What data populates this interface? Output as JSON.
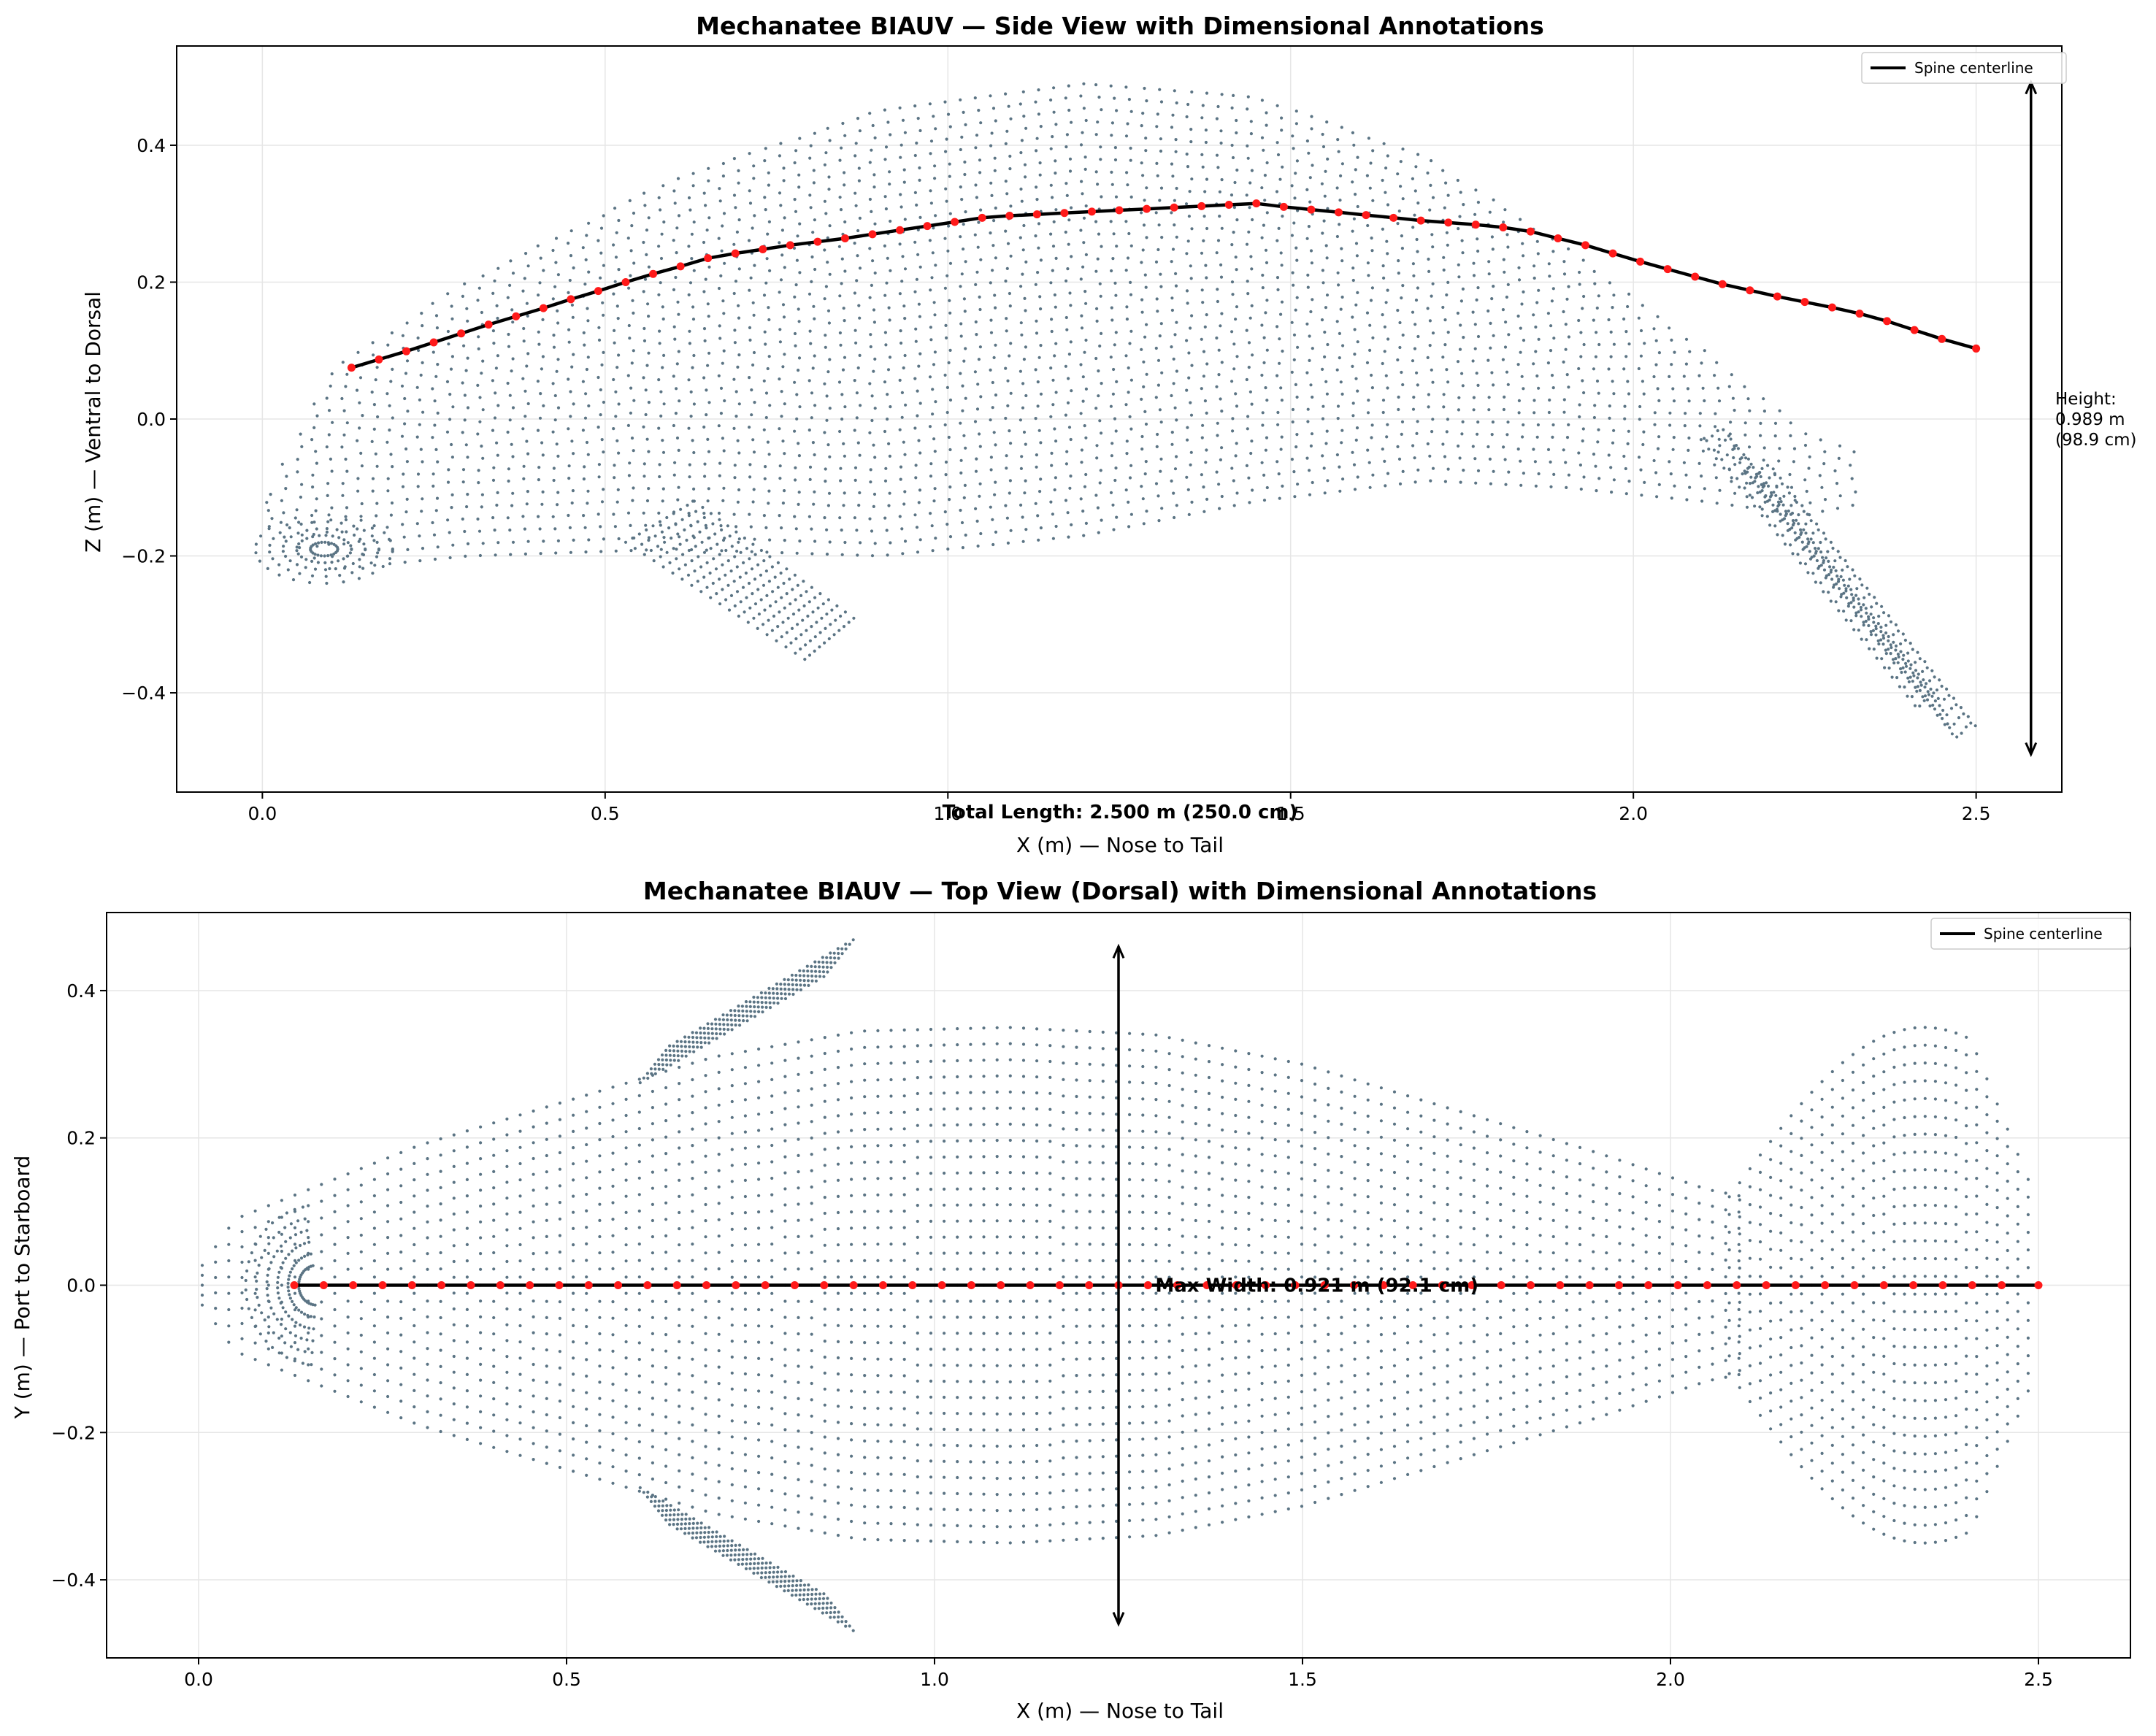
{
  "colors": {
    "cloud": "#5b7484",
    "spine": "#000000",
    "spine_points": "#ff1a1a",
    "grid": "#e6e6e6"
  },
  "chart_data": [
    {
      "type": "scatter",
      "title": "Mechanatee BIAUV — Side View with Dimensional Annotations",
      "xlabel": "X (m) — Nose to Tail",
      "ylabel": "Z (m) — Ventral to Dorsal",
      "xlim": [
        -0.125,
        2.625
      ],
      "ylim": [
        -0.545,
        0.545
      ],
      "xticks": [
        0.0,
        0.5,
        1.0,
        1.5,
        2.0,
        2.5
      ],
      "xtick_labels": [
        "0.0",
        "0.5",
        "1.0",
        "1.5",
        "2.0",
        "2.5"
      ],
      "yticks": [
        -0.4,
        -0.2,
        0.0,
        0.2,
        0.4
      ],
      "ytick_labels": [
        "−0.4",
        "−0.2",
        "0.0",
        "0.2",
        "0.4"
      ],
      "grid": true,
      "legend": {
        "placement": "upper right",
        "entries": [
          "Spine centerline"
        ]
      },
      "series": [
        {
          "name": "Spine centerline",
          "x": [
            0.13,
            0.17,
            0.21,
            0.25,
            0.29,
            0.33,
            0.37,
            0.41,
            0.45,
            0.49,
            0.53,
            0.57,
            0.61,
            0.65,
            0.69,
            0.73,
            0.77,
            0.81,
            0.85,
            0.89,
            0.93,
            0.97,
            1.01,
            1.05,
            1.09,
            1.13,
            1.17,
            1.21,
            1.25,
            1.29,
            1.33,
            1.37,
            1.41,
            1.45,
            1.49,
            1.53,
            1.57,
            1.61,
            1.65,
            1.69,
            1.73,
            1.77,
            1.81,
            1.85,
            1.89,
            1.93,
            1.97,
            2.01,
            2.05,
            2.09,
            2.13,
            2.17,
            2.21,
            2.25,
            2.29,
            2.33,
            2.37,
            2.41,
            2.45,
            2.5
          ],
          "y": [
            0.075,
            0.087,
            0.099,
            0.112,
            0.125,
            0.138,
            0.15,
            0.162,
            0.175,
            0.187,
            0.2,
            0.212,
            0.223,
            0.235,
            0.242,
            0.248,
            0.254,
            0.259,
            0.264,
            0.27,
            0.276,
            0.282,
            0.288,
            0.294,
            0.297,
            0.299,
            0.301,
            0.303,
            0.305,
            0.307,
            0.309,
            0.311,
            0.313,
            0.315,
            0.31,
            0.306,
            0.302,
            0.298,
            0.294,
            0.29,
            0.287,
            0.284,
            0.28,
            0.274,
            0.264,
            0.254,
            0.242,
            0.23,
            0.219,
            0.208,
            0.197,
            0.188,
            0.179,
            0.171,
            0.163,
            0.154,
            0.143,
            0.13,
            0.117,
            0.103
          ]
        }
      ],
      "annotations": [
        {
          "text_lines": [
            "Height:",
            "0.989 m",
            "(98.9 cm)"
          ],
          "arrow": {
            "x": 2.58,
            "y_from": -0.49,
            "y_to": 0.492
          }
        },
        {
          "text": "Total Length: 2.500 m (250.0 cm)",
          "x": 1.25
        }
      ]
    },
    {
      "type": "scatter",
      "title": "Mechanatee BIAUV — Top View (Dorsal) with Dimensional Annotations",
      "xlabel": "X (m) — Nose to Tail",
      "ylabel": "Y (m) — Port to Starboard",
      "xlim": [
        -0.125,
        2.625
      ],
      "ylim": [
        -0.506,
        0.506
      ],
      "xticks": [
        0.0,
        0.5,
        1.0,
        1.5,
        2.0,
        2.5
      ],
      "xtick_labels": [
        "0.0",
        "0.5",
        "1.0",
        "1.5",
        "2.0",
        "2.5"
      ],
      "yticks": [
        -0.4,
        -0.2,
        0.0,
        0.2,
        0.4
      ],
      "ytick_labels": [
        "−0.4",
        "−0.2",
        "0.0",
        "0.2",
        "0.4"
      ],
      "grid": true,
      "legend": {
        "placement": "upper right",
        "entries": [
          "Spine centerline"
        ]
      },
      "series": [
        {
          "name": "Spine centerline",
          "x": [
            0.13,
            0.17,
            0.21,
            0.25,
            0.29,
            0.33,
            0.37,
            0.41,
            0.45,
            0.49,
            0.53,
            0.57,
            0.61,
            0.65,
            0.69,
            0.73,
            0.77,
            0.81,
            0.85,
            0.89,
            0.93,
            0.97,
            1.01,
            1.05,
            1.09,
            1.13,
            1.17,
            1.21,
            1.25,
            1.29,
            1.33,
            1.37,
            1.41,
            1.45,
            1.49,
            1.53,
            1.57,
            1.61,
            1.65,
            1.69,
            1.73,
            1.77,
            1.81,
            1.85,
            1.89,
            1.93,
            1.97,
            2.01,
            2.05,
            2.09,
            2.13,
            2.17,
            2.21,
            2.25,
            2.29,
            2.33,
            2.37,
            2.41,
            2.45,
            2.5
          ],
          "y": [
            0,
            0,
            0,
            0,
            0,
            0,
            0,
            0,
            0,
            0,
            0,
            0,
            0,
            0,
            0,
            0,
            0,
            0,
            0,
            0,
            0,
            0,
            0,
            0,
            0,
            0,
            0,
            0,
            0,
            0,
            0,
            0,
            0,
            0,
            0,
            0,
            0,
            0,
            0,
            0,
            0,
            0,
            0,
            0,
            0,
            0,
            0,
            0,
            0,
            0,
            0,
            0,
            0,
            0,
            0,
            0,
            0,
            0,
            0,
            0
          ]
        }
      ],
      "annotations": [
        {
          "text": "Max Width: 0.921 m (92.1 cm)",
          "x": 1.3,
          "y": 0.0,
          "arrow": {
            "x": 1.25,
            "y_from": -0.46,
            "y_to": 0.46
          }
        }
      ]
    }
  ]
}
